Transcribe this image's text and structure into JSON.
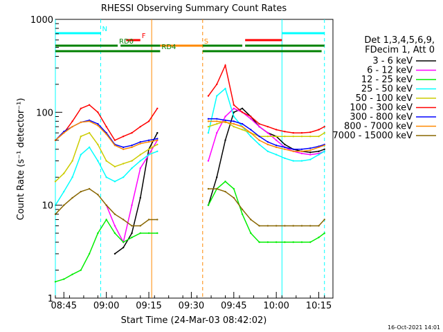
{
  "chart_data": {
    "type": "line",
    "title": "RHESSI Observing Summary Count Rates",
    "xlabel": "Start Time (24-Mar-03 08:42:02)",
    "ylabel": "Count Rate (s⁻¹ detector⁻¹)",
    "yscale": "log",
    "ylim": [
      1,
      1000
    ],
    "xlim": [
      "08:42",
      "10:20"
    ],
    "x_ticks": [
      "08:45",
      "09:00",
      "09:15",
      "09:30",
      "09:45",
      "10:00",
      "10:15"
    ],
    "y_ticks": [
      "1",
      "10",
      "100",
      "1000"
    ],
    "grid": false,
    "legend_position": "top-right",
    "legend_header": [
      "Det 1,3,4,5,6,9,",
      "FDecim 1, Att 0"
    ],
    "footer_date": "16-Oct-2021 14:01",
    "data_gaps": [
      [
        "09:19",
        "09:35"
      ],
      [
        "10:17",
        "10:20"
      ]
    ],
    "x": [
      "08:42",
      "08:45",
      "08:48",
      "08:51",
      "08:54",
      "08:57",
      "09:00",
      "09:03",
      "09:06",
      "09:09",
      "09:12",
      "09:15",
      "09:18",
      "09:36",
      "09:39",
      "09:42",
      "09:45",
      "09:48",
      "09:51",
      "09:54",
      "09:57",
      "10:00",
      "10:03",
      "10:06",
      "10:09",
      "10:12",
      "10:15",
      "10:17"
    ],
    "series": [
      {
        "name": "3 - 6 keV",
        "color": "#000000",
        "values": [
          null,
          null,
          null,
          null,
          null,
          null,
          null,
          3,
          3.5,
          5,
          12,
          40,
          60,
          10,
          20,
          50,
          100,
          110,
          90,
          70,
          60,
          55,
          45,
          40,
          38,
          37,
          38,
          40
        ]
      },
      {
        "name": "6 - 12 keV",
        "color": "#ff00ff",
        "values": [
          null,
          null,
          null,
          null,
          null,
          null,
          10,
          6,
          4,
          10,
          25,
          35,
          50,
          30,
          60,
          90,
          110,
          100,
          85,
          70,
          60,
          50,
          42,
          38,
          36,
          35,
          36,
          38
        ]
      },
      {
        "name": "12 - 25 keV",
        "color": "#00ee00",
        "values": [
          1.5,
          1.6,
          1.8,
          2,
          3,
          5,
          7,
          5,
          4,
          4.5,
          5,
          5,
          5,
          10,
          15,
          18,
          15,
          8,
          5,
          4,
          4,
          4,
          4,
          4,
          4,
          4,
          4.5,
          5
        ]
      },
      {
        "name": "25 - 50 keV",
        "color": "#00ffff",
        "values": [
          10,
          14,
          20,
          35,
          42,
          30,
          20,
          18,
          20,
          25,
          30,
          35,
          38,
          60,
          150,
          180,
          90,
          70,
          55,
          45,
          38,
          35,
          32,
          30,
          30,
          31,
          35,
          38
        ]
      },
      {
        "name": "50 - 100 keV",
        "color": "#cccc00",
        "values": [
          18,
          22,
          30,
          55,
          60,
          45,
          30,
          26,
          28,
          30,
          35,
          40,
          45,
          70,
          75,
          80,
          70,
          65,
          60,
          55,
          55,
          55,
          55,
          55,
          55,
          55,
          55,
          60
        ]
      },
      {
        "name": "100 - 300 keV",
        "color": "#ff0000",
        "values": [
          50,
          60,
          80,
          110,
          120,
          100,
          70,
          50,
          55,
          60,
          70,
          80,
          110,
          150,
          200,
          320,
          120,
          100,
          90,
          75,
          70,
          65,
          62,
          60,
          60,
          61,
          65,
          70
        ]
      },
      {
        "name": "300 - 800 keV",
        "color": "#0000ff",
        "values": [
          50,
          62,
          70,
          78,
          82,
          75,
          60,
          45,
          42,
          44,
          48,
          50,
          52,
          85,
          85,
          82,
          80,
          75,
          65,
          55,
          48,
          44,
          42,
          40,
          40,
          41,
          43,
          45
        ]
      },
      {
        "name": "800 - 7000 keV",
        "color": "#ff8800",
        "values": [
          50,
          60,
          70,
          78,
          80,
          72,
          58,
          44,
          40,
          42,
          46,
          48,
          50,
          80,
          80,
          78,
          75,
          70,
          60,
          50,
          45,
          42,
          40,
          38,
          38,
          39,
          42,
          44
        ]
      },
      {
        "name": "7000 - 15000 keV",
        "color": "#886600",
        "values": [
          8,
          10,
          12,
          14,
          15,
          13,
          10,
          8,
          7,
          6,
          6,
          7,
          7,
          15,
          15,
          14,
          12,
          9,
          7,
          6,
          6,
          6,
          6,
          6,
          6,
          6,
          6,
          7
        ]
      }
    ],
    "bars": [
      {
        "label": "N",
        "color": "#00ffff",
        "segments": [
          [
            "08:42",
            "08:58"
          ],
          [
            "10:02",
            "10:17"
          ]
        ]
      },
      {
        "label": "F",
        "color": "#ff0000",
        "segments": [
          [
            "09:07",
            "09:12"
          ],
          [
            "09:49",
            "10:02"
          ]
        ]
      },
      {
        "label": "S",
        "color": "#ff8800",
        "segments": [
          [
            "09:16",
            "09:34"
          ]
        ]
      },
      {
        "label": "RD0",
        "color": "#008000",
        "segments": [
          [
            "08:42",
            "09:04"
          ],
          [
            "09:05",
            "09:19"
          ],
          [
            "09:34",
            "09:48"
          ],
          [
            "09:49",
            "10:17"
          ]
        ]
      },
      {
        "label": "RD4",
        "color": "#008000",
        "segments": [
          [
            "08:42",
            "09:19"
          ],
          [
            "09:34",
            "10:16"
          ]
        ]
      }
    ],
    "vertical_markers": [
      {
        "x": "08:42",
        "color": "#00ffff",
        "style": "solid"
      },
      {
        "x": "08:58",
        "color": "#00ffff",
        "style": "dashed"
      },
      {
        "x": "09:16",
        "color": "#ff8800",
        "style": "solid"
      },
      {
        "x": "09:34",
        "color": "#ff8800",
        "style": "dashed"
      },
      {
        "x": "10:02",
        "color": "#00ffff",
        "style": "solid"
      },
      {
        "x": "10:17",
        "color": "#00ffff",
        "style": "dashed"
      }
    ]
  }
}
